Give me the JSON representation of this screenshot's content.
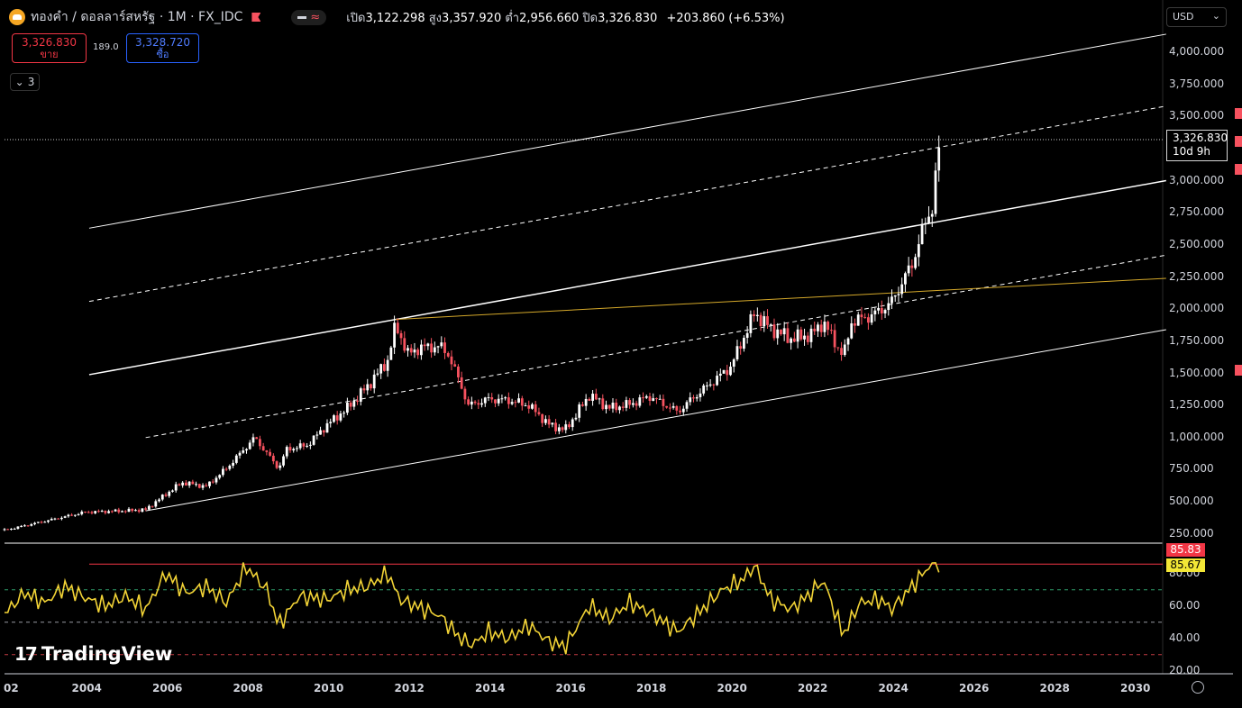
{
  "header": {
    "title": "ทองคำ / ดอลลาร์สหรัฐ · 1M · FX_IDC",
    "open_label": "เปิด",
    "open": "3,122.298",
    "high_label": "สูง",
    "high": "3,357.920",
    "low_label": "ต่ำ",
    "low": "2,956.660",
    "close_label": "ปิด",
    "close": "3,326.830",
    "change": "+203.860 (+6.53%)",
    "indicators_count": "3"
  },
  "trade": {
    "sell_price": "3,326.830",
    "sell_label": "ขาย",
    "spread": "189.0",
    "buy_price": "3,328.720",
    "buy_label": "ซื้อ"
  },
  "currency": "USD",
  "last_price": {
    "value": "3,326.830",
    "countdown": "10d 9h"
  },
  "rsi": {
    "current_high": "85.83",
    "current": "85.67",
    "upper": 70,
    "lower": 30,
    "mid": 50
  },
  "brand": "TradingView",
  "colors": {
    "up": "#ffffff",
    "down": "#f7525f",
    "rsi_line": "#f2d336",
    "trend_yellow": "#d4a82a",
    "sell": "#f23645",
    "buy": "#2962ff"
  },
  "icons": [
    "gold-logo-icon",
    "flag-icon",
    "chevron-down-icon",
    "settings-icon",
    "tradingview-logo-icon"
  ],
  "chart_data": [
    {
      "type": "candlestick",
      "title": "ทองคำ / ดอลลาร์สหรัฐ · 1M · FX_IDC",
      "x_ticks": [
        "02",
        "2004",
        "2006",
        "2008",
        "2010",
        "2012",
        "2014",
        "2016",
        "2018",
        "2020",
        "2022",
        "2024",
        "2026",
        "2028",
        "2030"
      ],
      "y_ticks": [
        "4,000.000",
        "3,750.000",
        "3,500.000",
        "3,250.000",
        "3,000.000",
        "2,750.000",
        "2,500.000",
        "2,250.000",
        "2,000.000",
        "1,750.000",
        "1,500.000",
        "1,250.000",
        "1,000.000",
        "750.000",
        "500.000",
        "250.000"
      ],
      "xlim": [
        2002.0,
        2030.7
      ],
      "ylim": [
        150,
        4150
      ],
      "series": [
        {
          "x": [
            2002.0,
            2003.0,
            2004.0,
            2005.0,
            2005.5,
            2006.0,
            2006.4,
            2007.0,
            2007.5,
            2008.0,
            2008.2,
            2008.8,
            2009.0,
            2009.5,
            2010.0,
            2010.5,
            2011.0,
            2011.5,
            2011.7,
            2012.0,
            2012.3,
            2012.8,
            2013.0,
            2013.3,
            2013.5,
            2014.0,
            2014.5,
            2015.0,
            2015.5,
            2015.9,
            2016.5,
            2017.0,
            2017.5,
            2018.0,
            2018.7,
            2019.0,
            2019.5,
            2020.0,
            2020.6,
            2021.0,
            2021.5,
            2022.0,
            2022.3,
            2022.8,
            2023.0,
            2023.5,
            2023.9,
            2024.0,
            2024.5,
            2024.8,
            2025.0,
            2025.2
          ],
          "values": [
            280,
            350,
            420,
            430,
            440,
            560,
            650,
            620,
            760,
            930,
            1000,
            760,
            910,
            940,
            1100,
            1230,
            1400,
            1600,
            1880,
            1650,
            1700,
            1710,
            1650,
            1420,
            1250,
            1300,
            1290,
            1250,
            1100,
            1060,
            1330,
            1230,
            1260,
            1320,
            1200,
            1290,
            1420,
            1550,
            1970,
            1850,
            1770,
            1800,
            1900,
            1630,
            1900,
            1950,
            2030,
            2060,
            2350,
            2650,
            2800,
            3326
          ]
        }
      ]
    },
    {
      "type": "line",
      "title": "RSI",
      "y_ticks": [
        "80.00",
        "60.00",
        "40.00",
        "20.00"
      ],
      "ylim": [
        18,
        105
      ],
      "series": [
        {
          "x": [
            2002.0,
            2002.5,
            2003.0,
            2003.5,
            2004.0,
            2004.5,
            2005.0,
            2005.5,
            2006.0,
            2006.5,
            2007.0,
            2007.5,
            2008.0,
            2008.5,
            2008.8,
            2009.3,
            2010.0,
            2010.5,
            2011.0,
            2011.5,
            2011.8,
            2012.2,
            2012.8,
            2013.3,
            2013.6,
            2014.0,
            2014.5,
            2015.0,
            2015.5,
            2015.9,
            2016.5,
            2017.0,
            2017.5,
            2018.0,
            2018.7,
            2019.3,
            2019.8,
            2020.3,
            2020.6,
            2021.0,
            2021.5,
            2022.0,
            2022.3,
            2022.8,
            2023.2,
            2023.7,
            2024.0,
            2024.5,
            2024.9,
            2025.2
          ],
          "values": [
            55,
            68,
            62,
            72,
            65,
            60,
            66,
            58,
            80,
            68,
            72,
            62,
            84,
            70,
            48,
            66,
            64,
            70,
            72,
            80,
            64,
            60,
            54,
            40,
            36,
            44,
            40,
            48,
            38,
            35,
            60,
            52,
            62,
            56,
            44,
            58,
            70,
            76,
            85,
            64,
            58,
            68,
            76,
            42,
            62,
            64,
            58,
            72,
            84,
            86
          ]
        }
      ]
    }
  ]
}
